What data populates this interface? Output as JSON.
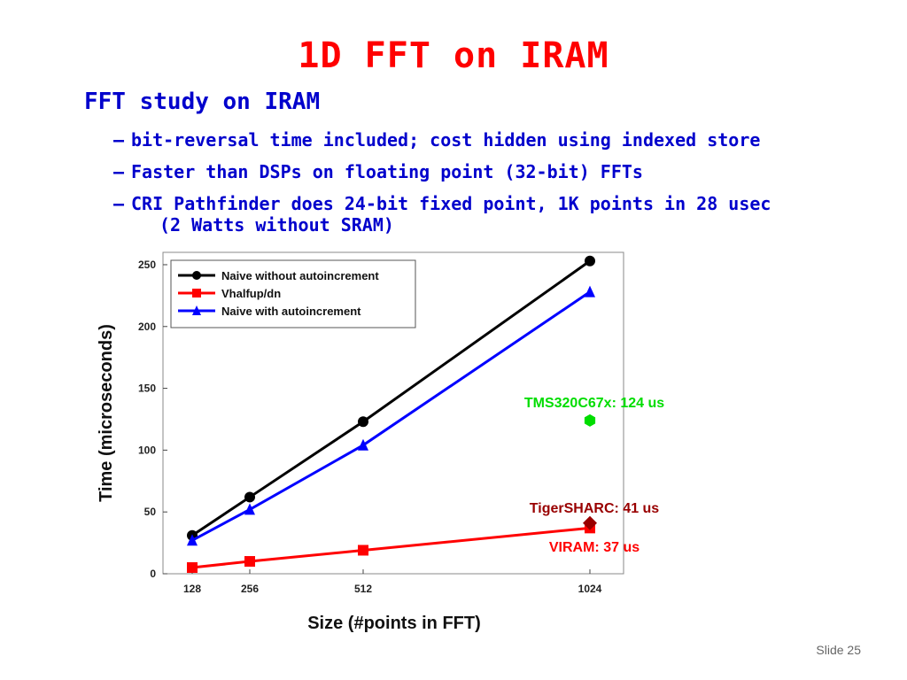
{
  "slide": {
    "title": "1D FFT on IRAM",
    "main_bullet": "FFT study on IRAM",
    "sub_bullets": [
      {
        "dash": "–",
        "text": "bit-reversal time included; cost hidden using indexed store"
      },
      {
        "dash": "–",
        "text": "Faster than DSPs on floating point (32-bit) FFTs"
      },
      {
        "dash": "–",
        "text": "CRI Pathfinder does 24-bit fixed point, 1K points in 28 usec"
      }
    ],
    "sub_bullet_continuation": "(2 Watts without SRAM)",
    "slide_number": "Slide 25"
  },
  "chart_data": {
    "type": "line",
    "xlabel": "Size (#points in FFT)",
    "ylabel": "Time (microseconds)",
    "x": [
      128,
      256,
      512,
      1024
    ],
    "x_tick_labels": [
      "128",
      "256",
      "512",
      "1024"
    ],
    "ylim": [
      0,
      260
    ],
    "y_ticks": [
      0,
      50,
      100,
      150,
      200,
      250
    ],
    "grid": false,
    "legend_position": "top-left",
    "series": [
      {
        "name": "Naive without autoincrement",
        "color": "#000000",
        "marker": "circle",
        "values": [
          31,
          62,
          123,
          253
        ]
      },
      {
        "name": "Vhalfup/dn",
        "color": "#ff0000",
        "marker": "square",
        "values": [
          5,
          10,
          19,
          37
        ]
      },
      {
        "name": "Naive with autoincrement",
        "color": "#0000ff",
        "marker": "triangle",
        "values": [
          27,
          52,
          104,
          228
        ]
      }
    ],
    "annotations": [
      {
        "text": "TMS320C67x: 124 us",
        "x": 1024,
        "y": 124,
        "color": "#00dd00",
        "marker": "hexagon"
      },
      {
        "text": "TigerSHARC: 41 us",
        "x": 1024,
        "y": 41,
        "color": "#990000",
        "marker": "diamond"
      },
      {
        "text": "VIRAM: 37 us",
        "x": 1024,
        "y": 37,
        "color": "#ff0000",
        "marker": "none"
      }
    ]
  }
}
